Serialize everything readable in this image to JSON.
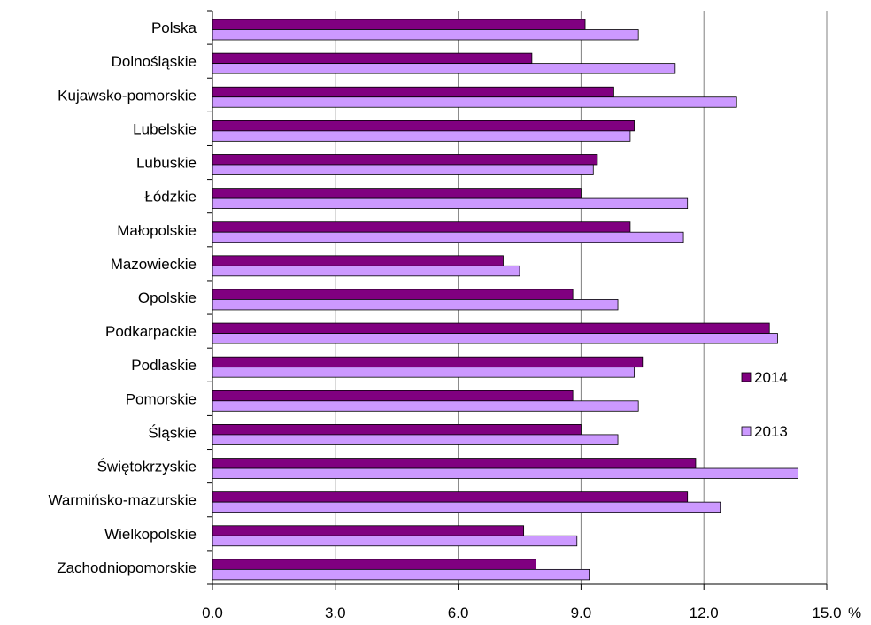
{
  "chart_data": {
    "type": "bar",
    "orientation": "horizontal",
    "categories": [
      "Polska",
      "Dolnośląskie",
      "Kujawsko-pomorskie",
      "Lubelskie",
      "Lubuskie",
      "Łódzkie",
      "Małopolskie",
      "Mazowieckie",
      "Opolskie",
      "Podkarpackie",
      "Podlaskie",
      "Pomorskie",
      "Śląskie",
      "Świętokrzyskie",
      "Warmińsko-mazurskie",
      "Wielkopolskie",
      "Zachodniopomorskie"
    ],
    "series": [
      {
        "name": "2014",
        "color": "#800080",
        "values": [
          9.1,
          7.8,
          9.8,
          10.3,
          9.4,
          9.0,
          10.2,
          7.1,
          8.8,
          13.6,
          10.5,
          8.8,
          9.0,
          11.8,
          11.6,
          7.6,
          7.9
        ]
      },
      {
        "name": "2013",
        "color": "#CC99FF",
        "values": [
          10.4,
          11.3,
          12.8,
          10.2,
          9.3,
          11.6,
          11.5,
          7.5,
          9.9,
          13.8,
          10.3,
          10.4,
          9.9,
          14.3,
          12.4,
          8.9,
          9.2
        ]
      }
    ],
    "xlim": [
      0,
      15
    ],
    "xticks": [
      "0.0",
      "3.0",
      "6.0",
      "9.0",
      "12.0",
      "15.0"
    ],
    "xunit": "%",
    "gridlines": "vertical",
    "legend_position": "right",
    "title": "",
    "xlabel": "",
    "ylabel": ""
  }
}
